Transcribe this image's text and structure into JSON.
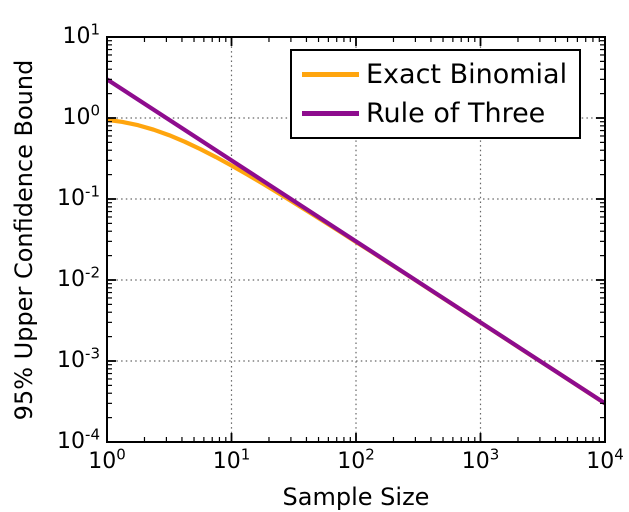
{
  "figure": {
    "background": "#ffffff",
    "frame_color": "#000000",
    "grid_color": "#666666"
  },
  "legend": {
    "items": [
      {
        "label": "Exact Binomial"
      },
      {
        "label": "Rule of Three"
      }
    ]
  },
  "chart_data": {
    "type": "line",
    "title": "",
    "xlabel": "Sample Size",
    "ylabel": "95% Upper Confidence Bound",
    "x_scale": "log",
    "y_scale": "log",
    "xlim": [
      1,
      10000
    ],
    "ylim": [
      0.0001,
      10
    ],
    "grid": true,
    "grid_style": "dotted",
    "legend_position": "upper right",
    "x_ticks": [
      1,
      10,
      100,
      1000,
      10000
    ],
    "x_tick_labels": [
      {
        "base": "10",
        "exp": "0"
      },
      {
        "base": "10",
        "exp": "1"
      },
      {
        "base": "10",
        "exp": "2"
      },
      {
        "base": "10",
        "exp": "3"
      },
      {
        "base": "10",
        "exp": "4"
      }
    ],
    "y_ticks": [
      10,
      1,
      0.1,
      0.01,
      0.001,
      0.0001
    ],
    "y_tick_labels": [
      {
        "base": "10",
        "exp": "1"
      },
      {
        "base": "10",
        "exp": "0"
      },
      {
        "base": "10",
        "exp": "-1"
      },
      {
        "base": "10",
        "exp": "-2"
      },
      {
        "base": "10",
        "exp": "-3"
      },
      {
        "base": "10",
        "exp": "-4"
      }
    ],
    "series": [
      {
        "name": "Exact Binomial",
        "color": "#FFA50E",
        "line_width": 4.2,
        "x": [
          1,
          1.33,
          1.78,
          2.37,
          3.16,
          4.22,
          5.62,
          7.5,
          10,
          13.3,
          17.8,
          23.7,
          31.6,
          42.2,
          56.2,
          75,
          100,
          133,
          178,
          237,
          316,
          422,
          562,
          750,
          1000,
          1330,
          1780,
          2370,
          3160,
          4220,
          5620,
          7500,
          10000
        ],
        "y": [
          0.95,
          0.8949,
          0.8142,
          0.7175,
          0.6125,
          0.5083,
          0.4132,
          0.3293,
          0.2589,
          0.2017,
          0.1549,
          0.1187,
          0.0904,
          0.0685,
          0.0519,
          0.0392,
          0.0295,
          0.0223,
          0.0167,
          0.0126,
          0.00944,
          0.00707,
          0.00532,
          0.00399,
          0.00299,
          0.00225,
          0.00168,
          0.00126,
          0.000948,
          0.00071,
          0.000533,
          0.000399,
          0.0003
        ]
      },
      {
        "name": "Rule of Three",
        "color": "#8E0C8E",
        "line_width": 4.2,
        "x": [
          1,
          10,
          100,
          1000,
          10000
        ],
        "y": [
          3,
          0.3,
          0.03,
          0.003,
          0.0003
        ]
      }
    ]
  }
}
